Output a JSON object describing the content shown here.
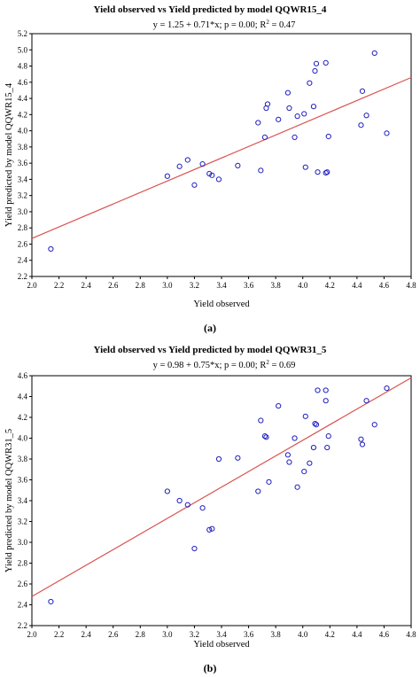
{
  "chart_data": [
    {
      "type": "scatter",
      "title": "Yield observed vs Yield predicted by model QQWR15_4",
      "equation": "y = 1.25 + 0.71*x; p = 0.00; R",
      "r2_text": " = 0.47",
      "r2_sup": "2",
      "xlabel": "Yield observed",
      "ylabel": "Yield predicted by model QQWR15_4",
      "panel_label": "(a)",
      "xlim": [
        2.0,
        4.8
      ],
      "ylim": [
        2.2,
        5.2
      ],
      "xticks": [
        "2.0",
        "2.2",
        "2.4",
        "2.6",
        "2.8",
        "3.0",
        "3.2",
        "3.4",
        "3.6",
        "3.8",
        "4.0",
        "4.2",
        "4.4",
        "4.6",
        "4.8"
      ],
      "yticks": [
        "2.2",
        "2.4",
        "2.6",
        "2.8",
        "3.0",
        "3.2",
        "3.4",
        "3.6",
        "3.8",
        "4.0",
        "4.2",
        "4.4",
        "4.6",
        "4.8",
        "5.0",
        "5.2"
      ],
      "fit": {
        "intercept": 1.25,
        "slope": 0.71
      },
      "colors": {
        "points": "#1f1fbf",
        "fit": "#d9534f"
      },
      "points": [
        [
          2.14,
          2.54
        ],
        [
          3.0,
          3.44
        ],
        [
          3.09,
          3.56
        ],
        [
          3.15,
          3.64
        ],
        [
          3.2,
          3.33
        ],
        [
          3.26,
          3.59
        ],
        [
          3.31,
          3.47
        ],
        [
          3.33,
          3.45
        ],
        [
          3.38,
          3.4
        ],
        [
          3.52,
          3.57
        ],
        [
          3.67,
          4.1
        ],
        [
          3.69,
          3.51
        ],
        [
          3.72,
          3.92
        ],
        [
          3.73,
          4.28
        ],
        [
          3.74,
          4.33
        ],
        [
          3.82,
          4.14
        ],
        [
          3.89,
          4.47
        ],
        [
          3.9,
          4.28
        ],
        [
          3.94,
          3.92
        ],
        [
          3.96,
          4.18
        ],
        [
          4.01,
          4.21
        ],
        [
          4.02,
          3.55
        ],
        [
          4.05,
          4.59
        ],
        [
          4.08,
          4.3
        ],
        [
          4.09,
          4.74
        ],
        [
          4.1,
          4.83
        ],
        [
          4.11,
          3.49
        ],
        [
          4.17,
          4.84
        ],
        [
          4.17,
          3.48
        ],
        [
          4.18,
          3.49
        ],
        [
          4.19,
          3.93
        ],
        [
          4.43,
          4.07
        ],
        [
          4.44,
          4.49
        ],
        [
          4.47,
          4.19
        ],
        [
          4.53,
          4.96
        ],
        [
          4.62,
          3.97
        ]
      ]
    },
    {
      "type": "scatter",
      "title": "Yield observed vs Yield predicted by model QQWR31_5",
      "equation": "y = 0.98 + 0.75*x; p = 0.00; R",
      "r2_text": " = 0.69",
      "r2_sup": "2",
      "xlabel": "Yield observed",
      "ylabel": "Yield predicted by model QQWR31_5",
      "panel_label": "(b)",
      "xlim": [
        2.0,
        4.8
      ],
      "ylim": [
        2.2,
        4.6
      ],
      "xticks": [
        "2.0",
        "2.2",
        "2.4",
        "2.6",
        "2.8",
        "3.0",
        "3.2",
        "3.4",
        "3.6",
        "3.8",
        "4.0",
        "4.2",
        "4.4",
        "4.6",
        "4.8"
      ],
      "yticks": [
        "2.2",
        "2.4",
        "2.6",
        "2.8",
        "3.0",
        "3.2",
        "3.4",
        "3.6",
        "3.8",
        "4.0",
        "4.2",
        "4.4",
        "4.6"
      ],
      "fit": {
        "intercept": 0.98,
        "slope": 0.75
      },
      "colors": {
        "points": "#1f1fbf",
        "fit": "#d9534f"
      },
      "points": [
        [
          2.14,
          2.43
        ],
        [
          3.0,
          3.49
        ],
        [
          3.09,
          3.4
        ],
        [
          3.15,
          3.36
        ],
        [
          3.2,
          2.94
        ],
        [
          3.26,
          3.33
        ],
        [
          3.31,
          3.12
        ],
        [
          3.33,
          3.13
        ],
        [
          3.38,
          3.8
        ],
        [
          3.52,
          3.81
        ],
        [
          3.67,
          3.49
        ],
        [
          3.69,
          4.17
        ],
        [
          3.72,
          4.02
        ],
        [
          3.73,
          4.01
        ],
        [
          3.75,
          3.58
        ],
        [
          3.82,
          4.31
        ],
        [
          3.89,
          3.84
        ],
        [
          3.9,
          3.77
        ],
        [
          3.94,
          4.0
        ],
        [
          3.96,
          3.53
        ],
        [
          4.01,
          3.68
        ],
        [
          4.02,
          4.21
        ],
        [
          4.05,
          3.76
        ],
        [
          4.08,
          3.91
        ],
        [
          4.09,
          4.14
        ],
        [
          4.1,
          4.13
        ],
        [
          4.11,
          4.46
        ],
        [
          4.17,
          4.36
        ],
        [
          4.17,
          4.46
        ],
        [
          4.18,
          3.91
        ],
        [
          4.19,
          4.02
        ],
        [
          4.43,
          3.99
        ],
        [
          4.44,
          3.94
        ],
        [
          4.47,
          4.36
        ],
        [
          4.53,
          4.13
        ],
        [
          4.62,
          4.48
        ]
      ]
    }
  ]
}
